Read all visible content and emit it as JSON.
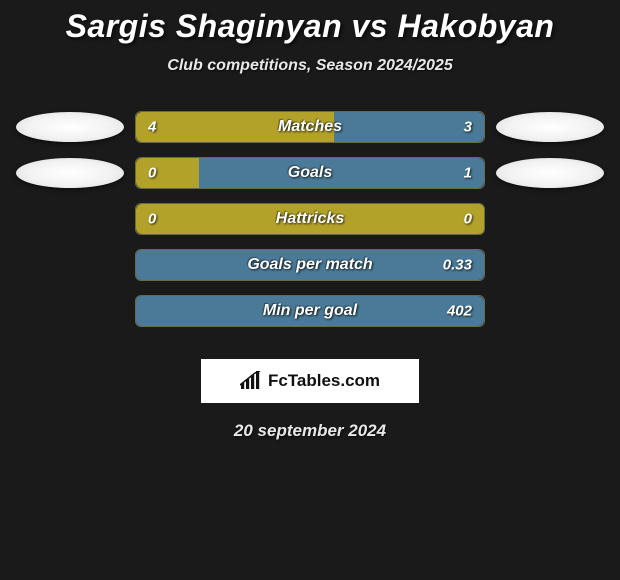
{
  "title": "Sargis Shaginyan vs Hakobyan",
  "subtitle": "Club competitions, Season 2024/2025",
  "date": "20 september 2024",
  "brand": "FcTables.com",
  "colors": {
    "left": "#b3a22a",
    "right": "#4a7a98",
    "background": "#1a1a1a"
  },
  "stats": [
    {
      "label": "Matches",
      "left_val": "4",
      "right_val": "3",
      "left_pct": 57,
      "right_pct": 43,
      "show_ellipses": true
    },
    {
      "label": "Goals",
      "left_val": "0",
      "right_val": "1",
      "left_pct": 18,
      "right_pct": 82,
      "show_ellipses": true
    },
    {
      "label": "Hattricks",
      "left_val": "0",
      "right_val": "0",
      "left_pct": 100,
      "right_pct": 0,
      "show_ellipses": false
    },
    {
      "label": "Goals per match",
      "left_val": "",
      "right_val": "0.33",
      "left_pct": 0,
      "right_pct": 100,
      "show_ellipses": false
    },
    {
      "label": "Min per goal",
      "left_val": "",
      "right_val": "402",
      "left_pct": 0,
      "right_pct": 100,
      "show_ellipses": false
    }
  ]
}
